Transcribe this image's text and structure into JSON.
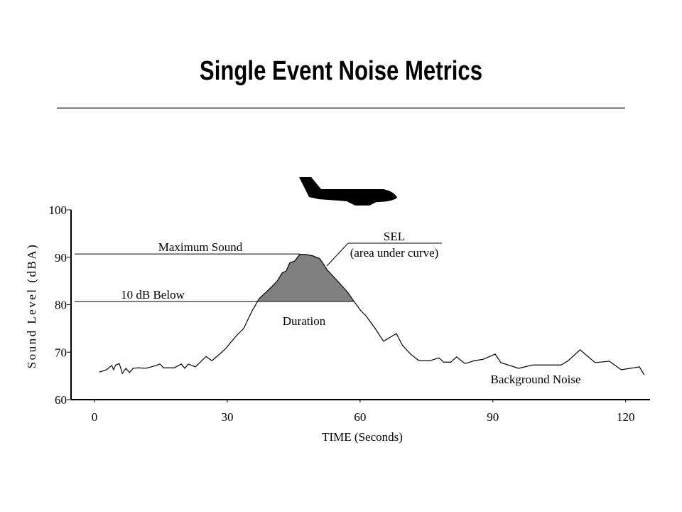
{
  "chart_data": {
    "type": "line",
    "title": "Single Event Noise Metrics",
    "xlabel": "TIME (Seconds)",
    "ylabel": "Sound Level (dBA)",
    "xlim": [
      -5.3,
      125.5
    ],
    "xticks": [
      0,
      30,
      60,
      90,
      120
    ],
    "ylim": [
      60,
      100
    ],
    "yticks": [
      60,
      70,
      80,
      90,
      100
    ],
    "series": [
      {
        "color": "#000000",
        "x": [
          1.1,
          2.7,
          3.9,
          4.3,
          4.8,
          5.6,
          6.3,
          7.1,
          7.9,
          8.7,
          9.9,
          11.6,
          13.2,
          14.8,
          15.6,
          18.0,
          19.6,
          20.4,
          21.2,
          22.8,
          25.2,
          26.5,
          28.4,
          29.7,
          30.8,
          32.1,
          33.7,
          35.6,
          37.2,
          39.3,
          41.2,
          42.4,
          43.3,
          44.1,
          45.2,
          46.4,
          47.6,
          49.3,
          50.9,
          51.7,
          52.5,
          54.9,
          57.3,
          58.4,
          60.2,
          61.3,
          63.4,
          65.3,
          66.9,
          68.2,
          69.6,
          71.4,
          73.3,
          75.7,
          77.8,
          78.9,
          80.5,
          81.8,
          83.7,
          85.8,
          87.8,
          90.5,
          91.8,
          95.8,
          99.0,
          105.4,
          107.0,
          109.7,
          113.1,
          116.3,
          119.0,
          123.1,
          124.2
        ],
        "values": [
          65.8,
          66.3,
          67.2,
          66.3,
          67.3,
          67.6,
          65.5,
          66.6,
          65.7,
          66.6,
          66.7,
          66.6,
          67.0,
          67.5,
          66.7,
          66.7,
          67.5,
          66.6,
          67.5,
          66.9,
          69.1,
          68.2,
          69.7,
          70.8,
          72.1,
          73.5,
          75.0,
          78.7,
          81.3,
          83.1,
          84.9,
          86.7,
          87.1,
          88.8,
          89.2,
          90.6,
          90.6,
          90.3,
          89.7,
          88.6,
          87.4,
          85.0,
          82.5,
          81.0,
          78.7,
          77.7,
          75.0,
          72.3,
          73.2,
          73.9,
          71.4,
          69.6,
          68.2,
          68.2,
          68.8,
          67.9,
          67.9,
          69.0,
          67.6,
          68.2,
          68.5,
          69.6,
          67.8,
          66.6,
          67.3,
          67.3,
          68.2,
          70.5,
          67.8,
          68.1,
          66.3,
          66.9,
          65.2
        ]
      }
    ],
    "reference_lines": [
      {
        "label": "Maximum Sound",
        "value": 90.7
      },
      {
        "label": "10 dB Below",
        "value": 80.7
      }
    ],
    "annotations": [
      "SEL",
      "(area under curve)",
      "Duration",
      "Background Noise"
    ]
  }
}
